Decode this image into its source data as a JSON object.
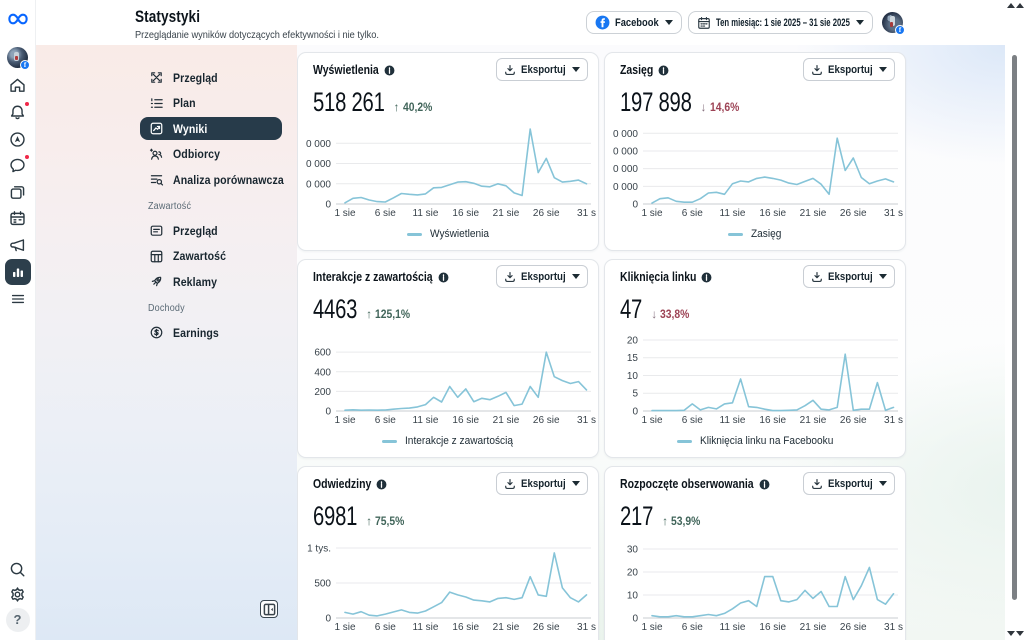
{
  "header": {
    "title": "Statystyki",
    "subtitle": "Przeglądanie wyników dotyczących efektywności i nie tylko.",
    "source_button": {
      "label": "Facebook"
    },
    "date_button": {
      "label": "Ten miesiąc: 1 sie 2025 – 31 sie 2025"
    }
  },
  "labels": {
    "export": "Eksportuj"
  },
  "sidebar": {
    "sections": [
      {
        "items": [
          {
            "label": "Przegląd"
          },
          {
            "label": "Plan"
          },
          {
            "label": "Wyniki",
            "active": true
          },
          {
            "label": "Odbiorcy"
          },
          {
            "label": "Analiza porównawcza"
          }
        ]
      },
      {
        "header": "Zawartość",
        "items": [
          {
            "label": "Przegląd"
          },
          {
            "label": "Zawartość"
          },
          {
            "label": "Reklamy"
          }
        ]
      },
      {
        "header": "Dochody",
        "items": [
          {
            "label": "Earnings"
          }
        ]
      }
    ]
  },
  "cards": [
    {
      "title": "Wyświetlenia",
      "value": "518 261",
      "delta": {
        "direction": "up",
        "text": "40,2%"
      },
      "legend": "Wyświetlenia"
    },
    {
      "title": "Zasięg",
      "value": "197 898",
      "delta": {
        "direction": "down",
        "text": "14,6%"
      },
      "legend": "Zasięg"
    },
    {
      "title": "Interakcje z zawartością",
      "value": "4463",
      "delta": {
        "direction": "up",
        "text": "125,1%"
      },
      "legend": "Interakcje z zawartością"
    },
    {
      "title": "Kliknięcia linku",
      "value": "47",
      "delta": {
        "direction": "down",
        "text": "33,8%"
      },
      "legend": "Kliknięcia linku na Facebooku"
    },
    {
      "title": "Odwiedziny",
      "value": "6981",
      "delta": {
        "direction": "up",
        "text": "75,5%"
      }
    },
    {
      "title": "Rozpoczęte obserwowania",
      "value": "217",
      "delta": {
        "direction": "up",
        "text": "53,9%"
      }
    }
  ],
  "chart_data": [
    {
      "type": "line",
      "title": "Wyświetlenia",
      "legend_position": "bottom",
      "grid": "horizontal",
      "x_tick_labels": [
        "1 sie",
        "6 sie",
        "11 sie",
        "16 sie",
        "21 sie",
        "26 sie",
        "31 s"
      ],
      "x_tick_days": [
        1,
        6,
        11,
        16,
        21,
        26,
        31
      ],
      "y_ticks": [
        {
          "v": 0,
          "label": "0"
        },
        {
          "v": 1,
          "label": "0 000"
        },
        {
          "v": 2,
          "label": "0 000"
        },
        {
          "v": 3,
          "label": "0 000"
        }
      ],
      "y_max": 4.0,
      "series": [
        {
          "name": "Wyświetlenia",
          "values": [
            0.06,
            0.28,
            0.32,
            0.2,
            0.12,
            0.1,
            0.3,
            0.52,
            0.48,
            0.45,
            0.5,
            0.8,
            0.82,
            0.95,
            1.08,
            1.1,
            1.02,
            0.88,
            0.85,
            1.0,
            0.9,
            0.55,
            0.42,
            3.7,
            1.55,
            2.25,
            1.3,
            1.08,
            1.12,
            1.18,
            1.0
          ]
        }
      ]
    },
    {
      "type": "line",
      "title": "Zasięg",
      "legend_position": "bottom",
      "grid": "horizontal",
      "x_tick_labels": [
        "1 sie",
        "6 sie",
        "11 sie",
        "16 sie",
        "21 sie",
        "26 sie",
        "31 s"
      ],
      "x_tick_days": [
        1,
        6,
        11,
        16,
        21,
        26,
        31
      ],
      "y_ticks": [
        {
          "v": 0,
          "label": "0"
        },
        {
          "v": 1,
          "label": "0 000"
        },
        {
          "v": 2,
          "label": "0 000"
        },
        {
          "v": 3,
          "label": "0 000"
        },
        {
          "v": 4,
          "label": "0 000"
        }
      ],
      "y_max": 4.58,
      "series": [
        {
          "name": "Zasięg",
          "values": [
            0.05,
            0.3,
            0.35,
            0.15,
            0.1,
            0.1,
            0.3,
            0.62,
            0.66,
            0.55,
            1.15,
            1.3,
            1.25,
            1.45,
            1.52,
            1.45,
            1.35,
            1.18,
            1.1,
            1.28,
            1.45,
            1.12,
            0.55,
            3.72,
            1.9,
            2.6,
            1.5,
            1.15,
            1.3,
            1.42,
            1.25
          ]
        }
      ]
    },
    {
      "type": "line",
      "title": "Interakcje z zawartością",
      "legend_position": "bottom",
      "grid": "horizontal",
      "x_tick_labels": [
        "1 sie",
        "6 sie",
        "11 sie",
        "16 sie",
        "21 sie",
        "26 sie",
        "31 s"
      ],
      "x_tick_days": [
        1,
        6,
        11,
        16,
        21,
        26,
        31
      ],
      "y_ticks": [
        {
          "v": 0,
          "label": "0"
        },
        {
          "v": 200,
          "label": "200"
        },
        {
          "v": 400,
          "label": "400"
        },
        {
          "v": 600,
          "label": "600"
        }
      ],
      "y_max": 826,
      "series": [
        {
          "name": "Interakcje z zawartością",
          "values": [
            8,
            12,
            8,
            10,
            8,
            10,
            18,
            25,
            30,
            42,
            65,
            140,
            92,
            250,
            140,
            225,
            95,
            130,
            115,
            150,
            190,
            55,
            70,
            250,
            140,
            600,
            350,
            310,
            280,
            300,
            215
          ]
        }
      ]
    },
    {
      "type": "line",
      "title": "Kliknięcia linku",
      "legend_position": "bottom",
      "grid": "horizontal",
      "x_tick_labels": [
        "1 sie",
        "6 sie",
        "11 sie",
        "16 sie",
        "21 sie",
        "26 sie",
        "31 s"
      ],
      "x_tick_days": [
        1,
        6,
        11,
        16,
        21,
        26,
        31
      ],
      "y_ticks": [
        {
          "v": 0,
          "label": "0"
        },
        {
          "v": 5,
          "label": "5"
        },
        {
          "v": 10,
          "label": "10"
        },
        {
          "v": 15,
          "label": "15"
        },
        {
          "v": 20,
          "label": "20"
        }
      ],
      "y_max": 22.8,
      "series": [
        {
          "name": "Kliknięcia linku na Facebooku",
          "values": [
            0.1,
            0.1,
            0.1,
            0.1,
            0.2,
            2,
            0.3,
            1,
            0.6,
            2,
            2.3,
            9,
            1.2,
            1,
            0.5,
            0.1,
            0.1,
            0.2,
            0.3,
            1.5,
            3,
            0.5,
            0.3,
            1,
            16,
            0.2,
            0.5,
            0.5,
            8,
            0.2,
            1
          ]
        }
      ]
    },
    {
      "type": "line",
      "title": "Odwiedziny",
      "legend_position": "bottom",
      "grid": "horizontal",
      "x_tick_labels": [
        "1 sie",
        "6 sie",
        "11 sie",
        "16 sie",
        "21 sie",
        "26 sie",
        "31 s"
      ],
      "x_tick_days": [
        1,
        6,
        11,
        16,
        21,
        26,
        31
      ],
      "y_ticks": [
        {
          "v": 0,
          "label": "0"
        },
        {
          "v": 500,
          "label": "500"
        },
        {
          "v": 1000,
          "label": "1 tys."
        }
      ],
      "y_max": 1157,
      "series": [
        {
          "name": "Odwiedziny",
          "values": [
            80,
            55,
            90,
            40,
            30,
            55,
            85,
            115,
            80,
            70,
            100,
            160,
            220,
            370,
            330,
            300,
            255,
            245,
            230,
            280,
            290,
            265,
            290,
            590,
            330,
            310,
            930,
            430,
            290,
            230,
            330
          ]
        }
      ]
    },
    {
      "type": "line",
      "title": "Rozpoczęte obserwowania",
      "legend_position": "bottom",
      "grid": "horizontal",
      "x_tick_labels": [
        "1 sie",
        "6 sie",
        "11 sie",
        "16 sie",
        "21 sie",
        "26 sie",
        "31 s"
      ],
      "x_tick_days": [
        1,
        6,
        11,
        16,
        21,
        26,
        31
      ],
      "y_ticks": [
        {
          "v": 0,
          "label": "0"
        },
        {
          "v": 10,
          "label": "10"
        },
        {
          "v": 20,
          "label": "20"
        },
        {
          "v": 30,
          "label": "30"
        }
      ],
      "y_max": 35.2,
      "series": [
        {
          "name": "Rozpoczęte obserwowania",
          "values": [
            1,
            0.5,
            0.5,
            1,
            0.5,
            0.5,
            1,
            1.5,
            1,
            2,
            4,
            6.5,
            7.5,
            5,
            18,
            18,
            7.5,
            7,
            8,
            12,
            8.5,
            11.5,
            5,
            5,
            18,
            8,
            14,
            22,
            8,
            6,
            10.5
          ]
        }
      ]
    }
  ],
  "colors": {
    "line": "#86c4d8",
    "grid": "#e9eaec",
    "axis": "#c8cdd2",
    "tick_text": "#39434b",
    "accent_blue": "#0866ff",
    "facebook_blue": "#1877f2",
    "active_nav": "#273b4a",
    "delta_up": "#41655a",
    "delta_down": "#9d4355"
  }
}
